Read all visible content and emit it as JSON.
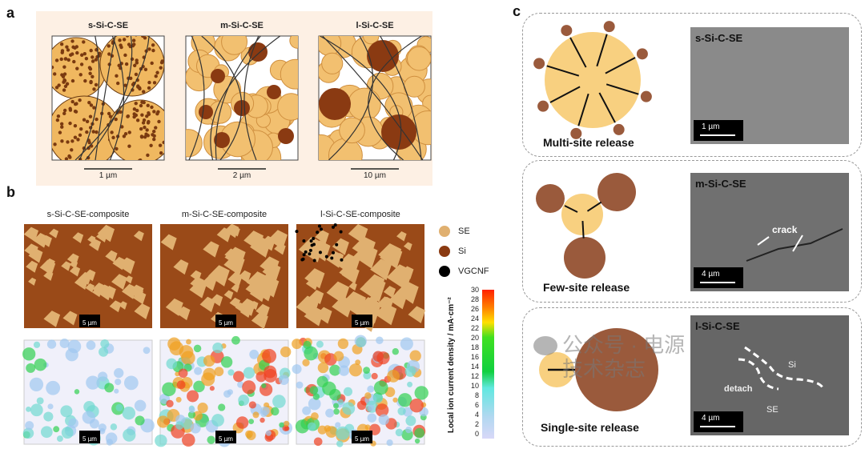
{
  "panel_a": {
    "label": "a",
    "titles": [
      "s-Si-C-SE",
      "m-Si-C-SE",
      "l-Si-C-SE"
    ],
    "scalebars": [
      "1 µm",
      "2 µm",
      "10 µm"
    ]
  },
  "panel_b": {
    "label": "b",
    "titles": [
      "s-Si-C-SE-composite",
      "m-Si-C-SE-composite",
      "l-Si-C-SE-composite"
    ],
    "cube_scale": "5 µm",
    "legend": [
      {
        "label": "SE",
        "color": "#e0b070"
      },
      {
        "label": "Si",
        "color": "#8a3a12"
      },
      {
        "label": "VGCNF",
        "color": "#000000"
      }
    ],
    "colorbar": {
      "title": "Local ion current density / mA·cm⁻²",
      "ticks": [
        "30",
        "28",
        "26",
        "24",
        "22",
        "20",
        "18",
        "16",
        "14",
        "12",
        "10",
        "8",
        "6",
        "4",
        "2",
        "0"
      ],
      "range": [
        0,
        30
      ]
    }
  },
  "panel_c": {
    "label": "c",
    "rows": [
      {
        "release": "Multi-site release",
        "sem_label": "s-Si-C-SE",
        "scale": "1 µm",
        "annotations": []
      },
      {
        "release": "Few-site release",
        "sem_label": "m-Si-C-SE",
        "scale": "4 µm",
        "annotations": [
          "crack"
        ]
      },
      {
        "release": "Single-site release",
        "sem_label": "l-Si-C-SE",
        "scale": "4 µm",
        "annotations": [
          "Si",
          "detach",
          "SE"
        ]
      }
    ]
  },
  "watermark": "公众号 · 电源技术杂志",
  "colors": {
    "se": "#f5c870",
    "si": "#9a5a3c",
    "panel_bg": "#fdf0e4"
  }
}
